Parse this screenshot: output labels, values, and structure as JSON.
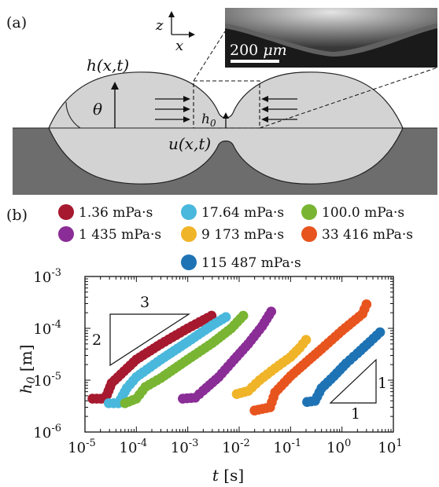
{
  "panel_a": {
    "label": "(a)",
    "axis_z": "z",
    "axis_x": "x",
    "height_label": "h(x,t)",
    "angle_label": "θ",
    "gap_label": "h",
    "gap_sub": "0",
    "flow_label": "u(x,t)",
    "scalebar_value": "200",
    "scalebar_unit": "μm",
    "colors": {
      "drop": "#d3d3d3",
      "substrate": "#6d6d6d",
      "outline": "#222222"
    }
  },
  "panel_b": {
    "label": "(b)"
  },
  "chart_data": {
    "type": "scatter",
    "x_scale": "log",
    "y_scale": "log",
    "xlim": [
      1e-05,
      10
    ],
    "ylim": [
      1e-06,
      0.001
    ],
    "xlabel_symbol": "t",
    "xlabel_unit": "[s]",
    "ylabel_symbol": "h",
    "ylabel_sub": "0",
    "ylabel_unit": "[m]",
    "x_ticks": [
      {
        "value": 1e-05,
        "base": "10",
        "exp": "-5"
      },
      {
        "value": 0.0001,
        "base": "10",
        "exp": "-4"
      },
      {
        "value": 0.001,
        "base": "10",
        "exp": "-3"
      },
      {
        "value": 0.01,
        "base": "10",
        "exp": "-2"
      },
      {
        "value": 0.1,
        "base": "10",
        "exp": "-1"
      },
      {
        "value": 1,
        "base": "10",
        "exp": "0"
      },
      {
        "value": 10,
        "base": "10",
        "exp": "1"
      }
    ],
    "y_ticks": [
      {
        "value": 1e-06,
        "base": "10",
        "exp": "-6"
      },
      {
        "value": 1e-05,
        "base": "10",
        "exp": "-5"
      },
      {
        "value": 0.0001,
        "base": "10",
        "exp": "-4"
      },
      {
        "value": 0.001,
        "base": "10",
        "exp": "-3"
      }
    ],
    "legend_placement": "top",
    "slope_triangles": [
      {
        "rise_label": "2",
        "run_label": "3"
      },
      {
        "rise_label": "1",
        "run_label": "1"
      }
    ],
    "series": [
      {
        "name": "1.36 mPa·s",
        "color": "#a6192e",
        "points": [
          [
            1.4e-05,
            4.4e-06
          ],
          [
            2.5e-05,
            4.4e-06
          ],
          [
            3.3e-05,
            8.8e-06
          ],
          [
            5e-05,
            1.3e-05
          ],
          [
            0.0001,
            2.5e-05
          ],
          [
            0.0003,
            5e-05
          ],
          [
            0.001,
            0.0001
          ],
          [
            0.0029,
            0.000175
          ]
        ]
      },
      {
        "name": "17.64 mPa·s",
        "color": "#4ab8dc",
        "points": [
          [
            2.9e-05,
            3.6e-06
          ],
          [
            4.5e-05,
            3.6e-06
          ],
          [
            6.5e-05,
            7e-06
          ],
          [
            0.0001,
            1.15e-05
          ],
          [
            0.0003,
            2.5e-05
          ],
          [
            0.001,
            5.5e-05
          ],
          [
            0.003,
            0.000115
          ],
          [
            0.0055,
            0.000165
          ]
        ]
      },
      {
        "name": "100.0 mPa·s",
        "color": "#79b533",
        "points": [
          [
            6e-05,
            3.6e-06
          ],
          [
            0.0001,
            4.4e-06
          ],
          [
            0.00015,
            7.4e-06
          ],
          [
            0.0003,
            1.1e-05
          ],
          [
            0.001,
            2.5e-05
          ],
          [
            0.003,
            5.2e-05
          ],
          [
            0.007,
            0.0001
          ],
          [
            0.012,
            0.000175
          ]
        ]
      },
      {
        "name": "1 435 mPa·s",
        "color": "#8a2d96",
        "points": [
          [
            0.0008,
            4.4e-06
          ],
          [
            0.0014,
            4.6e-06
          ],
          [
            0.002,
            6.3e-06
          ],
          [
            0.004,
            1.15e-05
          ],
          [
            0.008,
            2.5e-05
          ],
          [
            0.015,
            5e-05
          ],
          [
            0.028,
            0.00011
          ],
          [
            0.042,
            0.00021
          ]
        ]
      },
      {
        "name": "9 173 mPa·s",
        "color": "#f0b429",
        "points": [
          [
            0.009,
            5.4e-06
          ],
          [
            0.015,
            6.2e-06
          ],
          [
            0.025,
            1e-05
          ],
          [
            0.05,
            1.7e-05
          ],
          [
            0.1,
            2.8e-05
          ],
          [
            0.15,
            4.2e-05
          ],
          [
            0.2,
            6e-05
          ]
        ]
      },
      {
        "name": "33 416 mPa·s",
        "color": "#e8541e",
        "points": [
          [
            0.02,
            2.6e-06
          ],
          [
            0.04,
            3e-06
          ],
          [
            0.05,
            5.8e-06
          ],
          [
            0.1,
            1.2e-05
          ],
          [
            0.2,
            2.2e-05
          ],
          [
            0.4,
            4e-05
          ],
          [
            1,
            9e-05
          ],
          [
            2.5,
            0.00019
          ],
          [
            3,
            0.00029
          ]
        ]
      },
      {
        "name": "115 487 mPa·s",
        "color": "#1e73b4",
        "points": [
          [
            0.21,
            3.8e-06
          ],
          [
            0.3,
            4e-06
          ],
          [
            0.4,
            7e-06
          ],
          [
            0.7,
            1.2e-05
          ],
          [
            1.2,
            2.1e-05
          ],
          [
            2,
            3.3e-05
          ],
          [
            3.5,
            5.5e-05
          ],
          [
            5.5,
            8.4e-05
          ]
        ]
      }
    ]
  }
}
